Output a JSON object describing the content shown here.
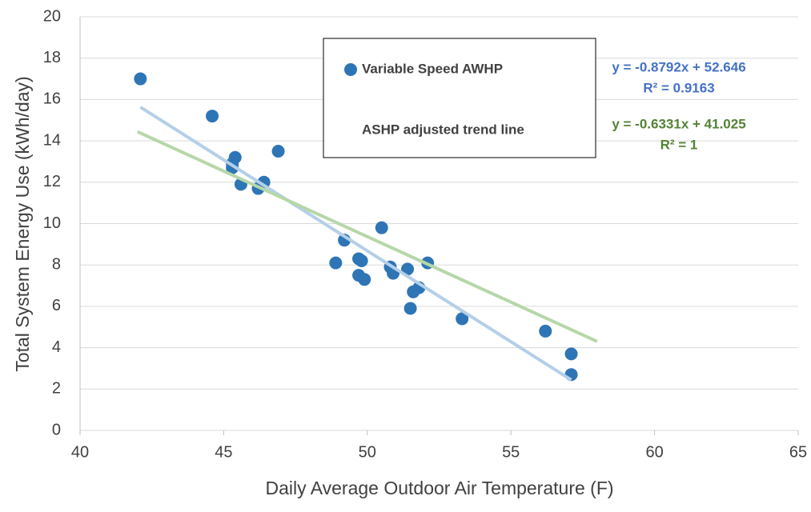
{
  "chart_data": {
    "type": "scatter",
    "x_label": "Daily Average Outdoor Air Temperature (F)",
    "y_label": "Total System Energy Use (kWh/day)",
    "xlim": [
      40,
      65
    ],
    "xticks": [
      40,
      45,
      50,
      55,
      60,
      65
    ],
    "ylim": [
      0,
      20
    ],
    "yticks": [
      0,
      2,
      4,
      6,
      8,
      10,
      12,
      14,
      16,
      18,
      20
    ],
    "grid": true,
    "series": [
      {
        "name": "Variable Speed AWHP",
        "color": "#2e75b6",
        "mode": "markers",
        "x": [
          42.1,
          44.6,
          45.4,
          45.3,
          45.3,
          45.6,
          46.2,
          46.4,
          46.9,
          48.9,
          49.2,
          49.7,
          49.8,
          49.7,
          49.9,
          50.5,
          50.8,
          50.9,
          51.4,
          51.8,
          51.6,
          51.5,
          52.1,
          53.3,
          56.2,
          57.1,
          57.1
        ],
        "values": [
          17.0,
          15.2,
          13.2,
          12.9,
          12.7,
          11.9,
          11.7,
          12.0,
          13.5,
          8.1,
          9.2,
          8.3,
          8.2,
          7.5,
          7.3,
          9.8,
          7.9,
          7.6,
          7.8,
          6.9,
          6.7,
          5.9,
          8.1,
          5.4,
          4.8,
          3.7,
          2.7
        ]
      },
      {
        "color": "#b4cfe8",
        "mode": "line",
        "x": [
          42.1,
          57.1
        ],
        "values": [
          15.63,
          2.44
        ]
      },
      {
        "name": "ASHP adjusted trend line",
        "color": "#b6d7a8",
        "mode": "line",
        "x": [
          42,
          58
        ],
        "values": [
          14.44,
          4.3
        ]
      }
    ],
    "annotations": [
      {
        "text": "y = -0.8792x + 52.646",
        "color": "#4472c4"
      },
      {
        "text": "R² = 0.9163",
        "color": "#4472c4"
      },
      {
        "text": "y = -0.6331x + 41.025",
        "color": "#548235"
      },
      {
        "text": "R² = 1",
        "color": "#548235"
      }
    ]
  }
}
